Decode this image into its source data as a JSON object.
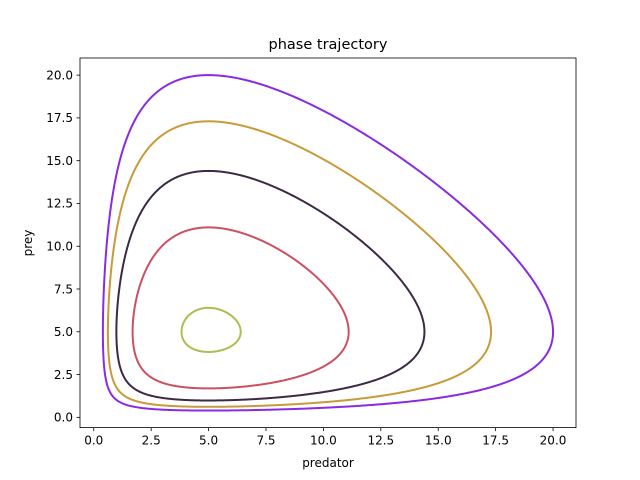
{
  "chart_data": {
    "type": "line",
    "title": "phase trajectory",
    "xlabel": "predator",
    "ylabel": "prey",
    "xlim": [
      -0.6,
      21.0
    ],
    "ylim": [
      -0.6,
      21.0
    ],
    "x_ticks": [
      "0.0",
      "2.5",
      "5.0",
      "7.5",
      "10.0",
      "12.5",
      "15.0",
      "17.5",
      "20.0"
    ],
    "y_ticks": [
      "0.0",
      "2.5",
      "5.0",
      "7.5",
      "10.0",
      "12.5",
      "15.0",
      "17.5",
      "20.0"
    ],
    "grid": false,
    "legend": "none",
    "equilibrium": [
      5,
      5
    ],
    "series": [
      {
        "color": "#a9bf50",
        "min": [
          3.9,
          3.9
        ],
        "max": [
          6.4,
          6.4
        ]
      },
      {
        "color": "#cc5060",
        "min": [
          1.65,
          1.65
        ],
        "max": [
          11.1,
          11.1
        ]
      },
      {
        "color": "#3c2a45",
        "min": [
          1.0,
          1.0
        ],
        "max": [
          14.4,
          14.4
        ]
      },
      {
        "color": "#c99a38",
        "min": [
          0.7,
          0.7
        ],
        "max": [
          17.3,
          17.3
        ]
      },
      {
        "color": "#8a2be2",
        "min": [
          0.48,
          0.48
        ],
        "max": [
          20.0,
          20.0
        ]
      }
    ]
  }
}
